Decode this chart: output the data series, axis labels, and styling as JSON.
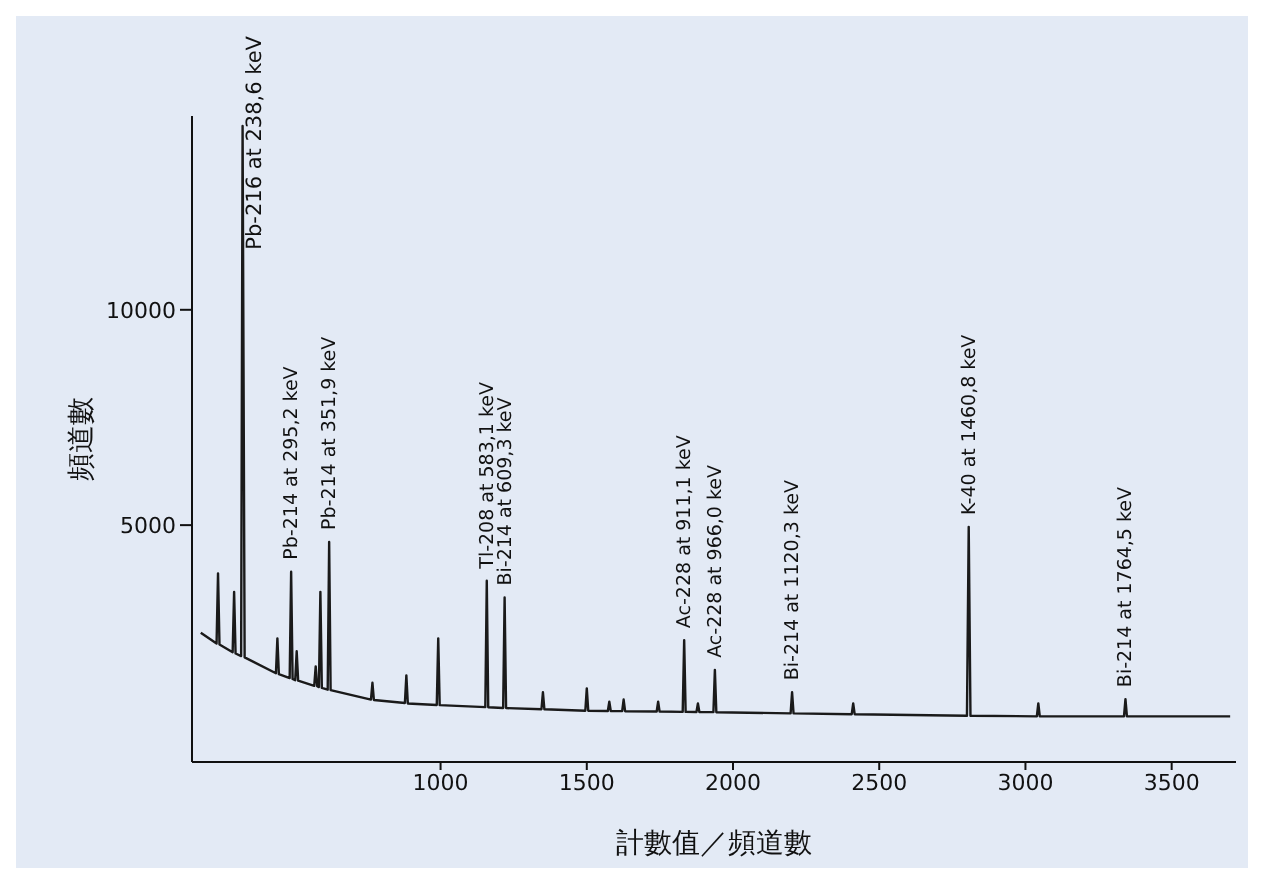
{
  "chart_data": {
    "type": "line",
    "xlabel": "計數值／頻道數",
    "ylabel": "頻道數",
    "xlim": [
      150,
      3720
    ],
    "ylim": [
      -500,
      14500
    ],
    "xticks": [
      1000,
      1500,
      2000,
      2500,
      3000,
      3500
    ],
    "yticks": [
      5000,
      10000
    ],
    "grid": false,
    "marker": "none",
    "series": [
      {
        "color": "#1a1a1a",
        "x": [
          180,
          234,
          239,
          244,
          289,
          294,
          299,
          318,
          323,
          330,
          437,
          442,
          447,
          484,
          489,
          494,
          503,
          508,
          513,
          568,
          573,
          578,
          584,
          589,
          594,
          614,
          619,
          624,
          762,
          767,
          772,
          878,
          883,
          888,
          987,
          992,
          997,
          1153,
          1158,
          1163,
          1214,
          1219,
          1224,
          1345,
          1350,
          1355,
          1495,
          1500,
          1505,
          1572,
          1577,
          1582,
          1621,
          1626,
          1631,
          1739,
          1744,
          1749,
          1828,
          1833,
          1838,
          1875,
          1880,
          1885,
          1933,
          1938,
          1943,
          2197,
          2202,
          2207,
          2406,
          2411,
          2416,
          2800,
          2806,
          2812,
          3039,
          3044,
          3049,
          3337,
          3342,
          3347,
          3700
        ],
        "values": [
          2500,
          2250,
          3880,
          2230,
          2050,
          3450,
          2020,
          1960,
          14270,
          1930,
          1560,
          2370,
          1540,
          1450,
          3920,
          1430,
          1400,
          2070,
          1390,
          1270,
          1720,
          1260,
          1240,
          3450,
          1220,
          1180,
          4610,
          1170,
          950,
          1340,
          940,
          870,
          1510,
          860,
          825,
          2370,
          820,
          775,
          3710,
          770,
          755,
          3320,
          752,
          725,
          1120,
          724,
          690,
          1210,
          690,
          685,
          900,
          684,
          682,
          950,
          680,
          672,
          900,
          671,
          665,
          2330,
          664,
          662,
          860,
          661,
          657,
          1640,
          656,
          630,
          1120,
          630,
          610,
          860,
          610,
          575,
          4960,
          575,
          560,
          860,
          560,
          560,
          960,
          560,
          560
        ]
      }
    ],
    "annotations": [
      {
        "text": "Pb-216 at 238,6 keV",
        "x": 323,
        "y": 14270
      },
      {
        "text": "Pb-214 at 295,2 keV",
        "x": 489,
        "y": 3920
      },
      {
        "text": "Pb-214 at 351,9 keV",
        "x": 619,
        "y": 4610
      },
      {
        "text": "Tl-208 at 583,1 keV",
        "x": 1158,
        "y": 3710
      },
      {
        "text": "Bi-214 at 609,3 keV",
        "x": 1219,
        "y": 3320
      },
      {
        "text": "Ac-228 at 911,1 keV",
        "x": 1833,
        "y": 2330
      },
      {
        "text": "Ac-228 at 966,0 keV",
        "x": 1938,
        "y": 1640
      },
      {
        "text": "Bi-214 at 1120,3 keV",
        "x": 2202,
        "y": 1120
      },
      {
        "text": "K-40 at 1460,8 keV",
        "x": 2806,
        "y": 4960
      },
      {
        "text": "Bi-214 at 1764,5 keV",
        "x": 3342,
        "y": 960
      }
    ]
  }
}
